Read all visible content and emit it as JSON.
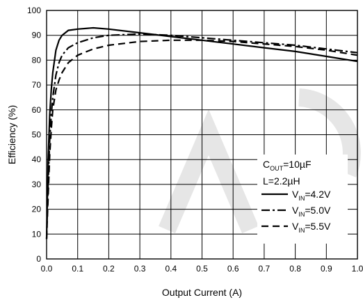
{
  "chart_data": {
    "type": "line",
    "xlabel": "Output Current (A)",
    "ylabel": "Efficiency (%)",
    "xlim": [
      0.0,
      1.0
    ],
    "ylim": [
      0,
      100
    ],
    "x_ticks": [
      "0.0",
      "0.1",
      "0.2",
      "0.3",
      "0.4",
      "0.5",
      "0.6",
      "0.7",
      "0.8",
      "0.9",
      "1.0"
    ],
    "y_ticks": [
      "0",
      "10",
      "20",
      "30",
      "40",
      "50",
      "60",
      "70",
      "80",
      "90",
      "100"
    ],
    "grid": true,
    "legend_position": "lower-right",
    "conditions": [
      {
        "prefix": "C",
        "sub": "OUT",
        "suffix": "=10µF"
      },
      {
        "prefix": "L=2.2µH",
        "sub": "",
        "suffix": ""
      }
    ],
    "series": [
      {
        "name": "V_IN=4.2V",
        "legend": {
          "prefix": "V",
          "sub": "IN",
          "suffix": "=4.2V"
        },
        "dash": "solid",
        "x": [
          0.0,
          0.005,
          0.01,
          0.015,
          0.02,
          0.03,
          0.04,
          0.05,
          0.07,
          0.1,
          0.15,
          0.2,
          0.3,
          0.4,
          0.5,
          0.6,
          0.7,
          0.8,
          0.9,
          1.0
        ],
        "y": [
          8,
          40,
          58,
          68,
          75,
          84,
          88,
          90,
          92,
          92.5,
          93,
          92.5,
          91,
          89.5,
          88,
          86.5,
          85,
          83.5,
          81.5,
          79.5
        ]
      },
      {
        "name": "V_IN=5.0V",
        "legend": {
          "prefix": "V",
          "sub": "IN",
          "suffix": "=5.0V"
        },
        "dash": "dashdot",
        "x": [
          0.0,
          0.005,
          0.01,
          0.015,
          0.02,
          0.03,
          0.04,
          0.05,
          0.07,
          0.1,
          0.15,
          0.2,
          0.3,
          0.4,
          0.5,
          0.6,
          0.7,
          0.8,
          0.9,
          1.0
        ],
        "y": [
          8,
          30,
          48,
          58,
          65,
          74,
          79,
          82,
          85,
          87,
          89,
          90,
          90.5,
          90,
          89,
          88,
          87,
          86,
          84.5,
          83
        ]
      },
      {
        "name": "V_IN=5.5V",
        "legend": {
          "prefix": "V",
          "sub": "IN",
          "suffix": "=5.5V"
        },
        "dash": "dashed",
        "x": [
          0.0,
          0.005,
          0.01,
          0.015,
          0.02,
          0.03,
          0.04,
          0.05,
          0.07,
          0.1,
          0.15,
          0.2,
          0.3,
          0.4,
          0.5,
          0.6,
          0.7,
          0.8,
          0.9,
          1.0
        ],
        "y": [
          8,
          25,
          42,
          52,
          60,
          68,
          72,
          75,
          79,
          82,
          84.5,
          86,
          87.5,
          88,
          88,
          87.5,
          86.5,
          85.5,
          84,
          82
        ]
      }
    ]
  }
}
